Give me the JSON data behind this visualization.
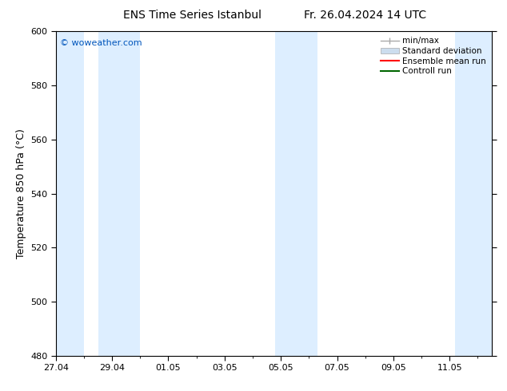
{
  "title_left": "ENS Time Series Istanbul",
  "title_right": "Fr. 26.04.2024 14 UTC",
  "ylabel": "Temperature 850 hPa (°C)",
  "ylim": [
    480,
    600
  ],
  "yticks": [
    480,
    500,
    520,
    540,
    560,
    580,
    600
  ],
  "xtick_labels": [
    "27.04",
    "29.04",
    "01.05",
    "03.05",
    "05.05",
    "07.05",
    "09.05",
    "11.05"
  ],
  "xtick_positions": [
    0,
    2,
    4,
    6,
    8,
    10,
    12,
    14
  ],
  "xlim": [
    0,
    15.5
  ],
  "watermark": "© woweather.com",
  "watermark_color": "#0055bb",
  "bg_color": "#ffffff",
  "plot_bg_color": "#ffffff",
  "shaded_band_color": "#ddeeff",
  "shaded_intervals": [
    [
      0.0,
      1.0
    ],
    [
      1.5,
      3.0
    ],
    [
      7.8,
      9.3
    ],
    [
      14.2,
      15.5
    ]
  ],
  "legend_labels": [
    "min/max",
    "Standard deviation",
    "Ensemble mean run",
    "Controll run"
  ],
  "legend_line_color_minmax": "#aaaaaa",
  "legend_fill_color_std": "#ccddee",
  "legend_color_ens": "#ff0000",
  "legend_color_ctrl": "#006600",
  "tick_fontsize": 8,
  "title_fontsize": 10,
  "label_fontsize": 9,
  "legend_fontsize": 7.5,
  "watermark_fontsize": 8
}
